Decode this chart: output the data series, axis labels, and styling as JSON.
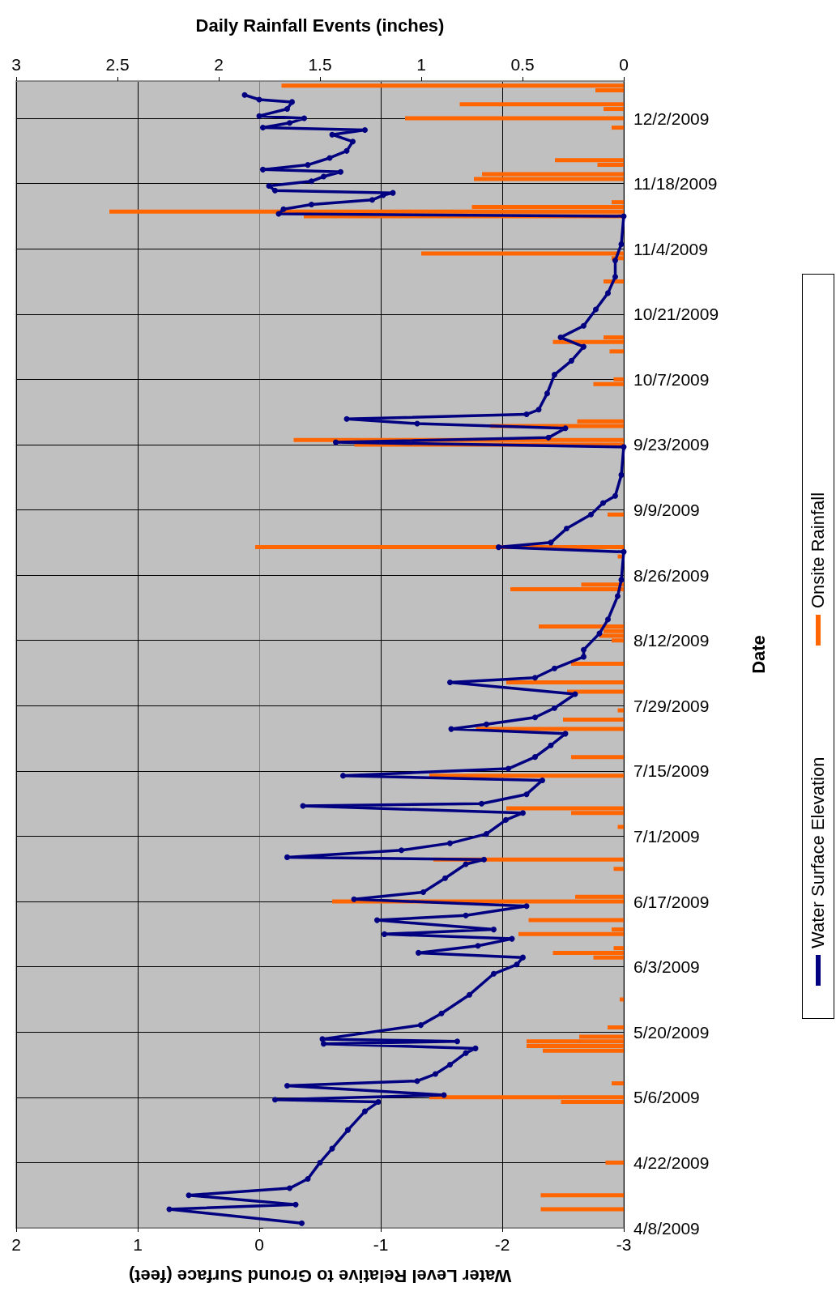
{
  "chart_data": {
    "type": "line",
    "orientation": "horizontal",
    "ylabel": "Date",
    "xlabel": "Water Level Relative to Ground Surface (feet)",
    "x2label": "Daily Rainfall Events (inches)",
    "ylim": [
      "2009-04-08",
      "2009-12-10"
    ],
    "yticks": [
      {
        "value": "2009-04-08",
        "label": "4/8/2009"
      },
      {
        "value": "2009-04-22",
        "label": "4/22/2009"
      },
      {
        "value": "2009-05-06",
        "label": "5/6/2009"
      },
      {
        "value": "2009-05-20",
        "label": "5/20/2009"
      },
      {
        "value": "2009-06-03",
        "label": "6/3/2009"
      },
      {
        "value": "2009-06-17",
        "label": "6/17/2009"
      },
      {
        "value": "2009-07-01",
        "label": "7/1/2009"
      },
      {
        "value": "2009-07-15",
        "label": "7/15/2009"
      },
      {
        "value": "2009-07-29",
        "label": "7/29/2009"
      },
      {
        "value": "2009-08-12",
        "label": "8/12/2009"
      },
      {
        "value": "2009-08-26",
        "label": "8/26/2009"
      },
      {
        "value": "2009-09-09",
        "label": "9/9/2009"
      },
      {
        "value": "2009-09-23",
        "label": "9/23/2009"
      },
      {
        "value": "2009-10-07",
        "label": "10/7/2009"
      },
      {
        "value": "2009-10-21",
        "label": "10/21/2009"
      },
      {
        "value": "2009-11-04",
        "label": "11/4/2009"
      },
      {
        "value": "2009-11-18",
        "label": "11/18/2009"
      },
      {
        "value": "2009-12-02",
        "label": "12/2/2009"
      }
    ],
    "xlim": [
      2,
      -3
    ],
    "xticks": [
      2,
      1,
      0,
      -1,
      -2,
      -3
    ],
    "x2lim": [
      3,
      0
    ],
    "x2ticks": [
      3,
      2.5,
      2,
      1.5,
      1,
      0.5,
      0
    ],
    "grid": true,
    "legend": "right",
    "series": [
      {
        "name": "Water Surface Elevation",
        "color": "#000080",
        "marker": "circle",
        "line_style": "solid",
        "x": [
          "2009-04-09",
          "2009-04-12",
          "2009-04-13",
          "2009-04-15",
          "2009-04-16T12:00",
          "2009-04-18T12:00",
          "2009-04-22",
          "2009-04-25",
          "2009-04-29",
          "2009-05-03",
          "2009-05-05",
          "2009-05-05T12:00",
          "2009-05-06T12:00",
          "2009-05-08T12:00",
          "2009-05-09T12:00",
          "2009-05-11",
          "2009-05-13",
          "2009-05-15T12:00",
          "2009-05-16T12:00",
          "2009-05-17T12:00",
          "2009-05-18",
          "2009-05-18T12:00",
          "2009-05-21T12:00",
          "2009-05-24",
          "2009-05-28",
          "2009-06-01T12:00",
          "2009-06-03T12:00",
          "2009-06-05",
          "2009-06-06",
          "2009-06-07T12:00",
          "2009-06-09",
          "2009-06-10",
          "2009-06-11",
          "2009-06-13",
          "2009-06-14",
          "2009-06-16",
          "2009-06-17T12:00",
          "2009-06-19",
          "2009-06-22",
          "2009-06-25",
          "2009-06-26",
          "2009-06-26T12:00",
          "2009-06-28",
          "2009-06-29T12:00",
          "2009-07-01T12:00",
          "2009-07-04T12:00",
          "2009-07-06",
          "2009-07-07T12:00",
          "2009-07-08",
          "2009-07-10",
          "2009-07-13",
          "2009-07-14",
          "2009-07-15T12:00",
          "2009-07-18",
          "2009-07-20T12:00",
          "2009-07-23",
          "2009-07-24",
          "2009-07-25",
          "2009-07-26T12:00",
          "2009-07-28T12:00",
          "2009-07-31T12:00",
          "2009-08-03",
          "2009-08-04",
          "2009-08-06",
          "2009-08-08T12:00",
          "2009-08-10",
          "2009-08-13T12:00",
          "2009-08-16T12:00",
          "2009-08-21T12:00",
          "2009-08-25",
          "2009-08-31",
          "2009-09-01",
          "2009-09-02",
          "2009-09-05",
          "2009-09-08",
          "2009-09-10T12:00",
          "2009-09-12",
          "2009-09-16T12:00",
          "2009-09-22T12:00",
          "2009-09-23T12:00",
          "2009-09-24T12:00",
          "2009-09-26T12:00",
          "2009-09-27T12:00",
          "2009-09-28T12:00",
          "2009-09-29T12:00",
          "2009-09-30T12:00",
          "2009-10-04",
          "2009-10-08",
          "2009-10-11",
          "2009-10-14",
          "2009-10-16",
          "2009-10-18T12:00",
          "2009-10-22",
          "2009-10-25T12:00",
          "2009-10-29",
          "2009-11-01T12:00",
          "2009-11-05",
          "2009-11-11",
          "2009-11-11T12:00",
          "2009-11-12T12:00",
          "2009-11-13T12:00",
          "2009-11-14T12:00",
          "2009-11-15T12:00",
          "2009-11-16",
          "2009-11-16T12:00",
          "2009-11-17T12:00",
          "2009-11-18T12:00",
          "2009-11-19T12:00",
          "2009-11-20T12:00",
          "2009-11-21",
          "2009-11-22",
          "2009-11-23T12:00",
          "2009-11-25",
          "2009-11-27",
          "2009-11-28T12:00",
          "2009-11-29T12:00",
          "2009-11-30",
          "2009-12-01",
          "2009-12-02",
          "2009-12-02T12:00",
          "2009-12-04",
          "2009-12-05T12:00",
          "2009-12-06",
          "2009-12-07"
        ],
        "values": [
          -0.35,
          0.74,
          -0.3,
          0.58,
          -0.25,
          -0.4,
          -0.5,
          -0.6,
          -0.73,
          -0.87,
          -0.98,
          -0.13,
          -1.52,
          -0.23,
          -1.3,
          -1.45,
          -1.57,
          -1.7,
          -1.78,
          -0.53,
          -1.63,
          -0.52,
          -1.33,
          -1.5,
          -1.73,
          -1.93,
          -2.12,
          -2.17,
          -1.31,
          -1.8,
          -2.08,
          -1.03,
          -1.93,
          -0.97,
          -1.7,
          -2.2,
          -0.78,
          -1.35,
          -1.53,
          -1.7,
          -1.85,
          -0.23,
          -1.17,
          -1.57,
          -1.87,
          -2.03,
          -2.17,
          -0.36,
          -1.83,
          -2.2,
          -2.33,
          -0.69,
          -2.05,
          -2.27,
          -2.4,
          -2.52,
          -1.58,
          -1.87,
          -2.27,
          -2.43,
          -2.6,
          -1.57,
          -2.27,
          -2.43,
          -2.67,
          -2.67,
          -2.8,
          -2.87,
          -2.95,
          -2.98,
          -3,
          -1.97,
          -2.4,
          -2.53,
          -2.73,
          -2.83,
          -2.93,
          -2.98,
          -3,
          -0.63,
          -2.38,
          -2.52,
          -1.3,
          -0.72,
          -2.2,
          -2.3,
          -2.37,
          -2.43,
          -2.57,
          -2.67,
          -2.48,
          -2.67,
          -2.77,
          -2.87,
          -2.93,
          -2.93,
          -2.98,
          -3,
          -0.16,
          -0.2,
          -0.43,
          -0.93,
          -1.02,
          -1.1,
          -0.13,
          -0.08,
          -0.43,
          -0.53,
          -0.67,
          -0.03,
          -0.4,
          -0.58,
          -0.72,
          -0.77,
          -0.6,
          -0.87,
          -0.03,
          -0.25,
          -0.37,
          0,
          -0.23,
          -0.27,
          0,
          0.12
        ]
      },
      {
        "name": "Onsite Rainfall",
        "type": "bar",
        "axis": "x2",
        "color": "#ff6600",
        "x": [
          "2009-04-12",
          "2009-04-15",
          "2009-04-22",
          "2009-05-05",
          "2009-05-06",
          "2009-05-09",
          "2009-05-16",
          "2009-05-17",
          "2009-05-18",
          "2009-05-19",
          "2009-05-21",
          "2009-05-27",
          "2009-06-05",
          "2009-06-06",
          "2009-06-07",
          "2009-06-10",
          "2009-06-11",
          "2009-06-13",
          "2009-06-17",
          "2009-06-18",
          "2009-06-24",
          "2009-06-26",
          "2009-07-03",
          "2009-07-06",
          "2009-07-07",
          "2009-07-14",
          "2009-07-18",
          "2009-07-24",
          "2009-07-26",
          "2009-07-28",
          "2009-08-01",
          "2009-08-03",
          "2009-08-07",
          "2009-08-12",
          "2009-08-13",
          "2009-08-14",
          "2009-08-15",
          "2009-08-23",
          "2009-08-24",
          "2009-08-30",
          "2009-09-01",
          "2009-09-08",
          "2009-09-23",
          "2009-09-24",
          "2009-09-27",
          "2009-09-28",
          "2009-10-06",
          "2009-10-07",
          "2009-10-13",
          "2009-10-15",
          "2009-10-16",
          "2009-10-28",
          "2009-11-02",
          "2009-11-03",
          "2009-11-11",
          "2009-11-12",
          "2009-11-13",
          "2009-11-14",
          "2009-11-19",
          "2009-11-20",
          "2009-11-22",
          "2009-11-23",
          "2009-11-30",
          "2009-12-02",
          "2009-12-04",
          "2009-12-05",
          "2009-12-08",
          "2009-12-09"
        ],
        "values": [
          0.41,
          0.41,
          0.09,
          0.31,
          0.96,
          0.06,
          0.4,
          0.48,
          0.48,
          0.22,
          0.08,
          0.02,
          0.15,
          0.35,
          0.05,
          0.52,
          0.06,
          0.47,
          1.44,
          0.24,
          0.05,
          0.94,
          0.03,
          0.26,
          0.58,
          0.96,
          0.26,
          0.73,
          0.3,
          0.03,
          0.28,
          0.58,
          0.26,
          0.06,
          0.12,
          0.1,
          0.42,
          0.56,
          0.21,
          0.03,
          1.82,
          0.08,
          1.33,
          1.63,
          0.66,
          0.23,
          0.15,
          0.05,
          0.07,
          0.35,
          0.1,
          0.1,
          0.06,
          1,
          1.58,
          2.54,
          0.75,
          0.06,
          0.74,
          0.7,
          0.13,
          0.34,
          0.06,
          1.08,
          0.1,
          0.81,
          0.14,
          1.69
        ]
      }
    ]
  }
}
